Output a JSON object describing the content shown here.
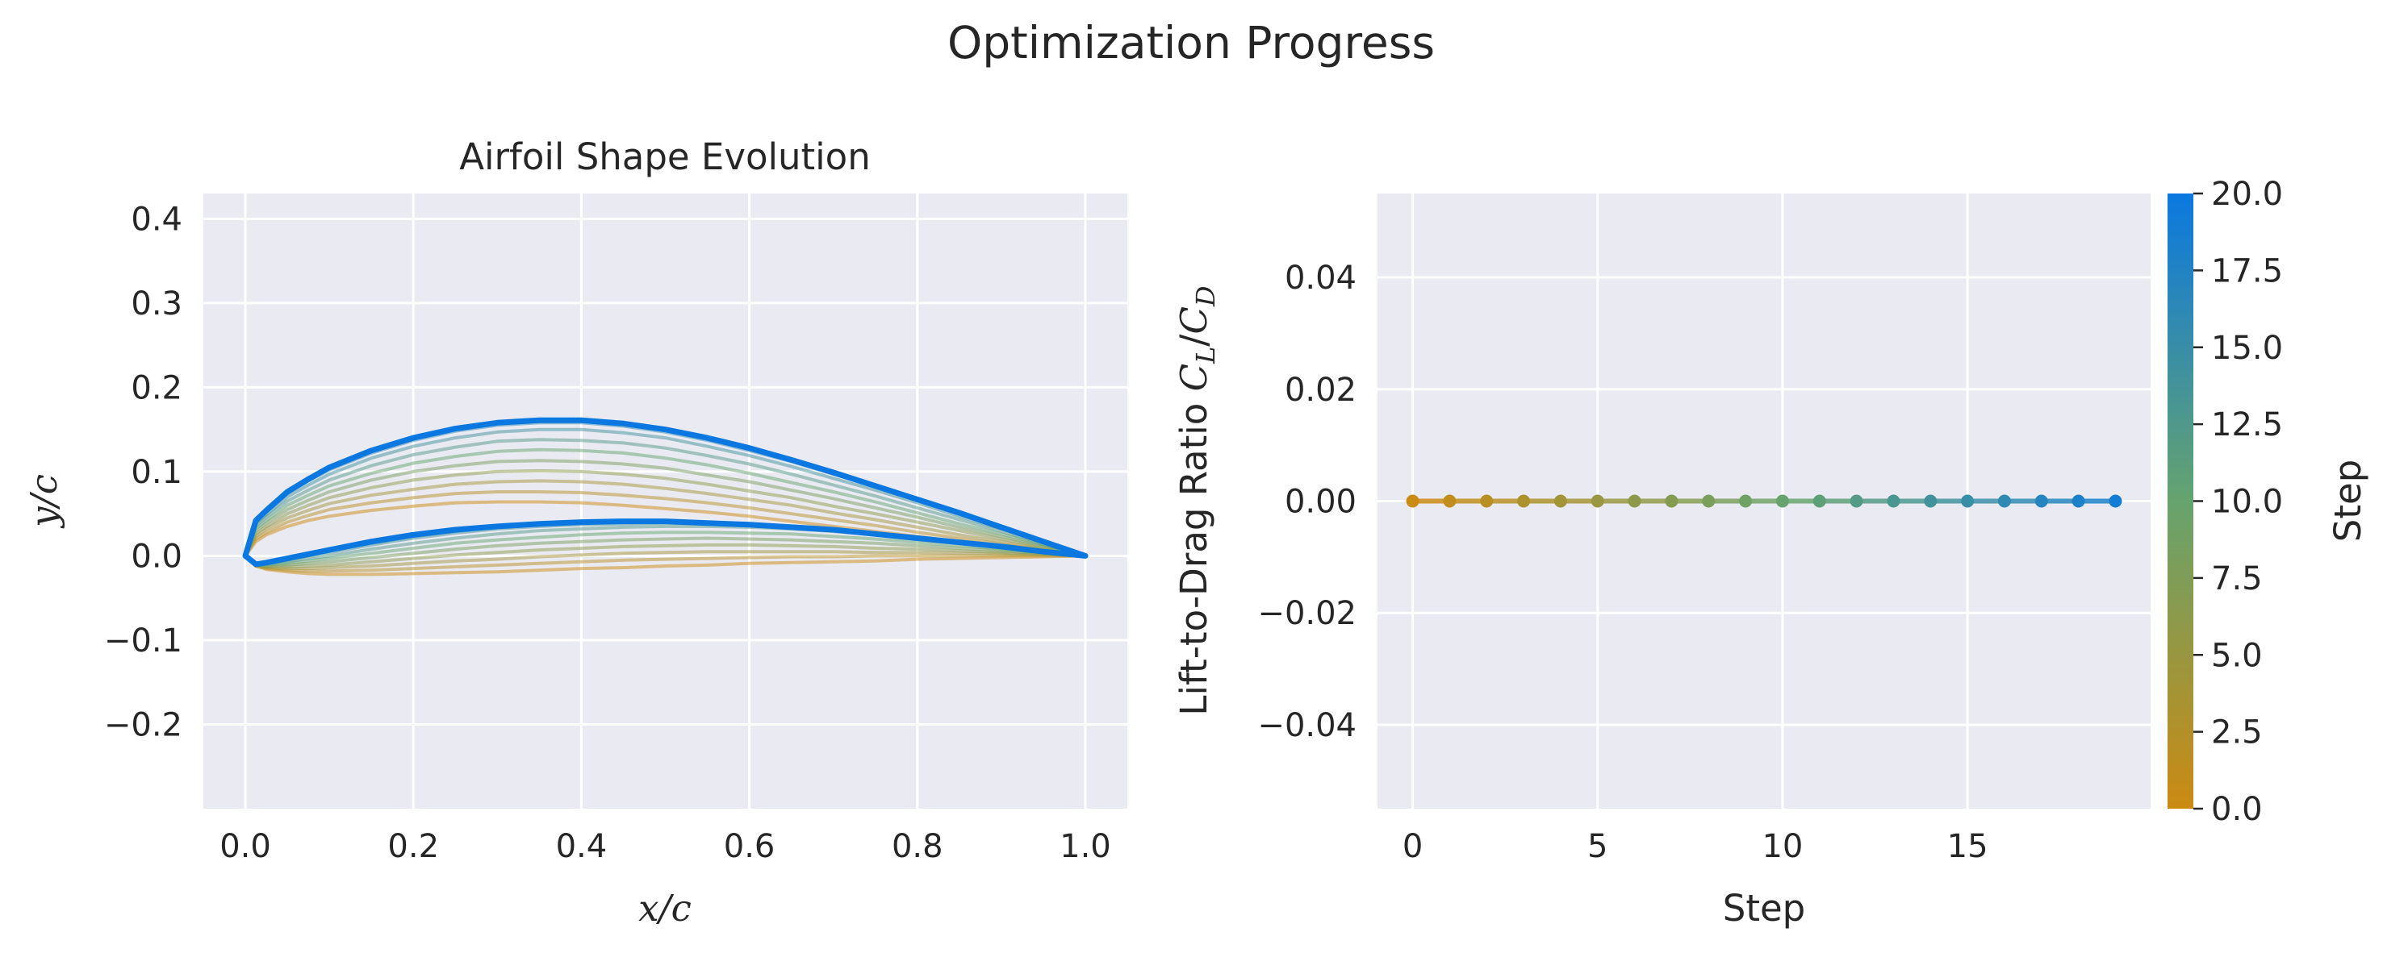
{
  "figure": {
    "suptitle": "Optimization Progress"
  },
  "colors": {
    "axes_bg": "#eaeaf2",
    "grid": "#ffffff",
    "start": "#cb8a12",
    "mid": "#66a36e",
    "end": "#0a78e0",
    "text": "#262626"
  },
  "chart_data": [
    {
      "type": "line",
      "title": "Airfoil Shape Evolution",
      "xlabel": "x/c",
      "ylabel": "y/c",
      "xlim": [
        -0.05,
        1.05
      ],
      "ylim": [
        -0.3,
        0.43
      ],
      "xticks": [
        "0.0",
        "0.2",
        "0.4",
        "0.6",
        "0.8",
        "1.0"
      ],
      "yticks": [
        "−0.2",
        "−0.1",
        "0.0",
        "0.1",
        "0.2",
        "0.3",
        "0.4"
      ],
      "grid": true,
      "x": [
        0,
        0.0125,
        0.025,
        0.05,
        0.075,
        0.1,
        0.15,
        0.2,
        0.25,
        0.3,
        0.35,
        0.4,
        0.45,
        0.5,
        0.55,
        0.6,
        0.65,
        0.7,
        0.75,
        0.8,
        0.85,
        0.9,
        0.95,
        1.0
      ],
      "series": [
        {
          "step": 0,
          "upper": [
            0,
            0.017,
            0.025,
            0.035,
            0.042,
            0.047,
            0.054,
            0.059,
            0.063,
            0.064,
            0.064,
            0.063,
            0.06,
            0.056,
            0.052,
            0.047,
            0.041,
            0.035,
            0.029,
            0.023,
            0.017,
            0.011,
            0.006,
            0
          ],
          "lower": [
            0,
            -0.012,
            -0.016,
            -0.019,
            -0.021,
            -0.022,
            -0.022,
            -0.021,
            -0.02,
            -0.019,
            -0.017,
            -0.015,
            -0.014,
            -0.012,
            -0.011,
            -0.009,
            -0.008,
            -0.007,
            -0.006,
            -0.004,
            -0.003,
            -0.002,
            -0.001,
            0
          ]
        },
        {
          "step": 2,
          "upper": [
            0,
            0.02,
            0.028,
            0.04,
            0.048,
            0.055,
            0.063,
            0.069,
            0.074,
            0.076,
            0.076,
            0.075,
            0.072,
            0.068,
            0.063,
            0.057,
            0.05,
            0.043,
            0.036,
            0.028,
            0.021,
            0.014,
            0.007,
            0
          ],
          "lower": [
            0,
            -0.012,
            -0.015,
            -0.017,
            -0.018,
            -0.018,
            -0.017,
            -0.015,
            -0.013,
            -0.011,
            -0.009,
            -0.007,
            -0.005,
            -0.004,
            -0.003,
            -0.002,
            -0.001,
            -0.001,
            0,
            0,
            0,
            0,
            0,
            0
          ]
        },
        {
          "step": 4,
          "upper": [
            0,
            0.023,
            0.032,
            0.045,
            0.054,
            0.062,
            0.072,
            0.079,
            0.085,
            0.088,
            0.089,
            0.088,
            0.085,
            0.08,
            0.074,
            0.067,
            0.06,
            0.051,
            0.043,
            0.034,
            0.025,
            0.017,
            0.008,
            0
          ],
          "lower": [
            0,
            -0.012,
            -0.014,
            -0.015,
            -0.015,
            -0.014,
            -0.012,
            -0.009,
            -0.006,
            -0.004,
            -0.001,
            0.001,
            0.003,
            0.004,
            0.005,
            0.005,
            0.005,
            0.005,
            0.004,
            0.004,
            0.003,
            0.002,
            0.001,
            0
          ]
        },
        {
          "step": 6,
          "upper": [
            0,
            0.026,
            0.035,
            0.05,
            0.06,
            0.069,
            0.081,
            0.09,
            0.096,
            0.1,
            0.101,
            0.1,
            0.097,
            0.092,
            0.085,
            0.077,
            0.069,
            0.059,
            0.05,
            0.04,
            0.03,
            0.02,
            0.01,
            0
          ],
          "lower": [
            0,
            -0.011,
            -0.013,
            -0.013,
            -0.012,
            -0.011,
            -0.007,
            -0.003,
            0.001,
            0.004,
            0.007,
            0.009,
            0.011,
            0.012,
            0.013,
            0.013,
            0.012,
            0.011,
            0.009,
            0.008,
            0.006,
            0.004,
            0.002,
            0
          ]
        },
        {
          "step": 8,
          "upper": [
            0,
            0.029,
            0.039,
            0.055,
            0.066,
            0.076,
            0.09,
            0.1,
            0.107,
            0.112,
            0.113,
            0.112,
            0.109,
            0.104,
            0.096,
            0.088,
            0.078,
            0.068,
            0.057,
            0.046,
            0.034,
            0.023,
            0.011,
            0
          ],
          "lower": [
            0,
            -0.011,
            -0.012,
            -0.011,
            -0.009,
            -0.007,
            -0.002,
            0.003,
            0.008,
            0.012,
            0.015,
            0.017,
            0.019,
            0.02,
            0.021,
            0.02,
            0.019,
            0.017,
            0.015,
            0.012,
            0.009,
            0.006,
            0.003,
            0
          ]
        },
        {
          "step": 10,
          "upper": [
            0,
            0.032,
            0.042,
            0.06,
            0.072,
            0.083,
            0.098,
            0.11,
            0.118,
            0.124,
            0.126,
            0.125,
            0.122,
            0.116,
            0.108,
            0.098,
            0.087,
            0.076,
            0.064,
            0.051,
            0.038,
            0.026,
            0.013,
            0
          ],
          "lower": [
            0,
            -0.011,
            -0.011,
            -0.009,
            -0.006,
            -0.003,
            0.003,
            0.009,
            0.015,
            0.019,
            0.022,
            0.025,
            0.027,
            0.028,
            0.028,
            0.027,
            0.026,
            0.023,
            0.02,
            0.016,
            0.012,
            0.008,
            0.004,
            0
          ]
        },
        {
          "step": 12,
          "upper": [
            0,
            0.035,
            0.046,
            0.065,
            0.078,
            0.09,
            0.107,
            0.12,
            0.129,
            0.136,
            0.138,
            0.137,
            0.134,
            0.128,
            0.119,
            0.109,
            0.097,
            0.084,
            0.071,
            0.057,
            0.043,
            0.029,
            0.014,
            0
          ],
          "lower": [
            0,
            -0.01,
            -0.01,
            -0.007,
            -0.003,
            0,
            0.008,
            0.015,
            0.021,
            0.026,
            0.03,
            0.032,
            0.034,
            0.035,
            0.035,
            0.034,
            0.032,
            0.029,
            0.025,
            0.02,
            0.015,
            0.01,
            0.005,
            0
          ]
        },
        {
          "step": 14,
          "upper": [
            0,
            0.038,
            0.049,
            0.07,
            0.084,
            0.097,
            0.116,
            0.13,
            0.14,
            0.147,
            0.15,
            0.15,
            0.146,
            0.14,
            0.13,
            0.119,
            0.106,
            0.092,
            0.078,
            0.063,
            0.047,
            0.032,
            0.016,
            0
          ],
          "lower": [
            0,
            -0.01,
            -0.009,
            -0.005,
            0,
            0.004,
            0.013,
            0.021,
            0.027,
            0.032,
            0.035,
            0.037,
            0.038,
            0.039,
            0.038,
            0.036,
            0.033,
            0.03,
            0.026,
            0.021,
            0.016,
            0.011,
            0.005,
            0
          ]
        },
        {
          "step": 16,
          "upper": [
            0,
            0.04,
            0.052,
            0.074,
            0.089,
            0.102,
            0.122,
            0.137,
            0.148,
            0.155,
            0.158,
            0.158,
            0.154,
            0.147,
            0.137,
            0.125,
            0.112,
            0.097,
            0.082,
            0.066,
            0.05,
            0.034,
            0.017,
            0
          ],
          "lower": [
            0,
            -0.01,
            -0.008,
            -0.004,
            0.001,
            0.006,
            0.015,
            0.023,
            0.029,
            0.034,
            0.037,
            0.039,
            0.04,
            0.04,
            0.039,
            0.037,
            0.034,
            0.03,
            0.026,
            0.021,
            0.016,
            0.011,
            0.005,
            0
          ]
        },
        {
          "step": 18,
          "upper": [
            0,
            0.041,
            0.053,
            0.075,
            0.09,
            0.104,
            0.124,
            0.139,
            0.15,
            0.157,
            0.16,
            0.16,
            0.156,
            0.149,
            0.139,
            0.127,
            0.113,
            0.098,
            0.083,
            0.067,
            0.05,
            0.034,
            0.017,
            0
          ],
          "lower": [
            0,
            -0.01,
            -0.008,
            -0.004,
            0.002,
            0.007,
            0.016,
            0.024,
            0.03,
            0.035,
            0.038,
            0.039,
            0.04,
            0.04,
            0.039,
            0.037,
            0.034,
            0.03,
            0.026,
            0.021,
            0.016,
            0.011,
            0.005,
            0
          ]
        },
        {
          "step": 20,
          "upper": [
            0,
            0.042,
            0.054,
            0.076,
            0.091,
            0.105,
            0.125,
            0.14,
            0.151,
            0.158,
            0.161,
            0.161,
            0.157,
            0.15,
            0.14,
            0.128,
            0.114,
            0.099,
            0.083,
            0.067,
            0.051,
            0.034,
            0.017,
            0
          ],
          "lower": [
            0,
            -0.01,
            -0.008,
            -0.003,
            0.002,
            0.007,
            0.017,
            0.025,
            0.031,
            0.035,
            0.038,
            0.04,
            0.041,
            0.041,
            0.039,
            0.037,
            0.034,
            0.031,
            0.026,
            0.021,
            0.016,
            0.011,
            0.005,
            0
          ]
        }
      ]
    },
    {
      "type": "line",
      "title": "",
      "xlabel": "Step",
      "ylabel": "Lift-to-Drag Ratio",
      "ylabel_math": "C",
      "ylabel_sub1": "L",
      "ylabel_sub2": "D",
      "xlim": [
        -0.95,
        19.95
      ],
      "ylim": [
        -0.055,
        0.055
      ],
      "xticks": [
        "0",
        "5",
        "10",
        "15"
      ],
      "yticks": [
        "−0.04",
        "−0.02",
        "0.00",
        "0.02",
        "0.04"
      ],
      "grid": true,
      "x": [
        0,
        1,
        2,
        3,
        4,
        5,
        6,
        7,
        8,
        9,
        10,
        11,
        12,
        13,
        14,
        15,
        16,
        17,
        18,
        19
      ],
      "y": [
        0,
        0,
        0,
        0,
        0,
        0,
        0,
        0,
        0,
        0,
        0,
        0,
        0,
        0,
        0,
        0,
        0,
        0,
        0,
        0
      ]
    }
  ],
  "colorbar": {
    "label": "Step",
    "range": [
      0,
      20
    ],
    "ticks": [
      "0.0",
      "2.5",
      "5.0",
      "7.5",
      "10.0",
      "12.5",
      "15.0",
      "17.5",
      "20.0"
    ]
  }
}
